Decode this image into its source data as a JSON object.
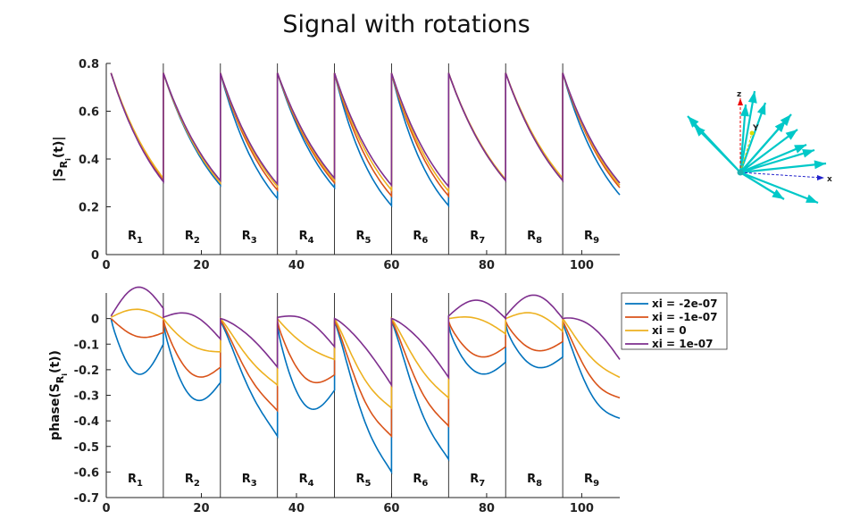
{
  "title": "Signal with rotations",
  "colors": {
    "blue": "#0072bd",
    "orange": "#d95319",
    "yellow": "#edb120",
    "purple": "#7e2f8e",
    "arrow": "#00c8c8"
  },
  "chart_data": [
    {
      "type": "line",
      "ylabel_main": "|S",
      "ylabel_sub": "R",
      "ylabel_subsub": "i",
      "ylabel_end": "(t)|",
      "xlim": [
        0,
        108
      ],
      "ylim": [
        0,
        0.8
      ],
      "xticks": [
        "0",
        "20",
        "40",
        "60",
        "80",
        "100"
      ],
      "xtick_values": [
        0,
        20,
        40,
        60,
        80,
        100
      ],
      "yticks": [
        "0",
        "0.2",
        "0.4",
        "0.6",
        "0.8"
      ],
      "ytick_values": [
        0,
        0.2,
        0.4,
        0.6,
        0.8
      ],
      "region_boundaries": [
        12,
        24,
        36,
        48,
        60,
        72,
        84,
        96
      ],
      "region_labels": [
        {
          "main": "R",
          "sub": "1"
        },
        {
          "main": "R",
          "sub": "2"
        },
        {
          "main": "R",
          "sub": "3"
        },
        {
          "main": "R",
          "sub": "4"
        },
        {
          "main": "R",
          "sub": "5"
        },
        {
          "main": "R",
          "sub": "6"
        },
        {
          "main": "R",
          "sub": "7"
        },
        {
          "main": "R",
          "sub": "8"
        },
        {
          "main": "R",
          "sub": "9"
        }
      ],
      "segment_start": 0.76,
      "series": [
        {
          "color": "blue",
          "ends": [
            0.31,
            0.29,
            0.235,
            0.28,
            0.205,
            0.205,
            0.31,
            0.31,
            0.25
          ]
        },
        {
          "color": "orange",
          "ends": [
            0.31,
            0.3,
            0.27,
            0.3,
            0.245,
            0.245,
            0.31,
            0.31,
            0.28
          ]
        },
        {
          "color": "yellow",
          "ends": [
            0.32,
            0.3,
            0.285,
            0.31,
            0.27,
            0.265,
            0.315,
            0.32,
            0.29
          ]
        },
        {
          "color": "purple",
          "ends": [
            0.305,
            0.31,
            0.295,
            0.32,
            0.29,
            0.285,
            0.31,
            0.31,
            0.3
          ]
        }
      ]
    },
    {
      "type": "line",
      "ylabel_main": "phase(S",
      "ylabel_sub": "R",
      "ylabel_subsub": "i",
      "ylabel_end": "(t))",
      "xlim": [
        0,
        108
      ],
      "ylim": [
        -0.7,
        0.1
      ],
      "xticks": [
        "0",
        "20",
        "40",
        "60",
        "80",
        "100"
      ],
      "xtick_values": [
        0,
        20,
        40,
        60,
        80,
        100
      ],
      "yticks": [
        "0",
        "-0.1",
        "-0.2",
        "-0.3",
        "-0.4",
        "-0.5",
        "-0.6",
        "-0.7"
      ],
      "ytick_values": [
        0,
        -0.1,
        -0.2,
        -0.3,
        -0.4,
        -0.5,
        -0.6,
        -0.7
      ],
      "region_boundaries": [
        12,
        24,
        36,
        48,
        60,
        72,
        84,
        96
      ],
      "region_labels": [
        {
          "main": "R",
          "sub": "1"
        },
        {
          "main": "R",
          "sub": "2"
        },
        {
          "main": "R",
          "sub": "3"
        },
        {
          "main": "R",
          "sub": "4"
        },
        {
          "main": "R",
          "sub": "5"
        },
        {
          "main": "R",
          "sub": "6"
        },
        {
          "main": "R",
          "sub": "7"
        },
        {
          "main": "R",
          "sub": "8"
        },
        {
          "main": "R",
          "sub": "9"
        }
      ],
      "legend": [
        "xi = -2e-07",
        "xi = -1e-07",
        "xi = 0",
        "xi = 1e-07"
      ],
      "series": [
        {
          "name": "xi = -2e-07",
          "color": "blue",
          "segments": [
            [
              0,
              -0.1,
              -0.1,
              0.6
            ],
            [
              -0.01,
              -0.25,
              -0.14,
              0.6
            ],
            [
              -0.01,
              -0.46,
              -0.18,
              1.6
            ],
            [
              -0.02,
              -0.28,
              -0.16,
              0.6
            ],
            [
              -0.01,
              -0.6,
              -0.24,
              1.5
            ],
            [
              -0.01,
              -0.55,
              -0.22,
              1.5
            ],
            [
              -0.02,
              -0.17,
              -0.1,
              0.5
            ],
            [
              -0.02,
              -0.15,
              -0.09,
              0.5
            ],
            [
              -0.02,
              -0.39,
              -0.17,
              1.2
            ]
          ]
        },
        {
          "name": "xi = -1e-07",
          "color": "orange",
          "segments": [
            [
              0,
              -0.055,
              -0.035,
              1.0
            ],
            [
              -0.005,
              -0.19,
              -0.1,
              0.7
            ],
            [
              -0.005,
              -0.36,
              -0.14,
              1.5
            ],
            [
              -0.01,
              -0.22,
              -0.11,
              0.7
            ],
            [
              -0.005,
              -0.46,
              -0.19,
              1.5
            ],
            [
              -0.005,
              -0.42,
              -0.17,
              1.5
            ],
            [
              -0.01,
              -0.11,
              -0.07,
              0.6
            ],
            [
              -0.01,
              -0.09,
              -0.06,
              0.6
            ],
            [
              -0.01,
              -0.31,
              -0.13,
              1.2
            ]
          ]
        },
        {
          "name": "xi = 0",
          "color": "yellow",
          "segments": [
            [
              0.005,
              0.0,
              0.02,
              2.0
            ],
            [
              0.0,
              -0.13,
              -0.05,
              0.9
            ],
            [
              0.0,
              -0.26,
              -0.09,
              1.3
            ],
            [
              0.0,
              -0.16,
              -0.05,
              0.9
            ],
            [
              0.0,
              -0.35,
              -0.13,
              1.3
            ],
            [
              0.0,
              -0.31,
              -0.11,
              1.3
            ],
            [
              0.0,
              -0.06,
              0.0,
              1.0
            ],
            [
              0.0,
              -0.05,
              0.01,
              1.0
            ],
            [
              0.0,
              -0.23,
              -0.08,
              1.1
            ]
          ]
        },
        {
          "name": "xi = 1e-07",
          "color": "purple",
          "segments": [
            [
              0.01,
              0.04,
              0.07,
              2.0
            ],
            [
              0.005,
              -0.08,
              0.01,
              1.0
            ],
            [
              0.0,
              -0.19,
              -0.04,
              1.2
            ],
            [
              0.005,
              -0.11,
              0.0,
              1.0
            ],
            [
              0.0,
              -0.26,
              -0.06,
              1.2
            ],
            [
              0.0,
              -0.23,
              -0.05,
              1.2
            ],
            [
              0.01,
              0.0,
              0.04,
              1.6
            ],
            [
              0.01,
              0.0,
              0.05,
              1.6
            ],
            [
              0.0,
              -0.16,
              -0.02,
              1.2
            ]
          ]
        }
      ]
    }
  ],
  "inset": {
    "labels": [
      "z",
      "Y",
      "x"
    ]
  }
}
